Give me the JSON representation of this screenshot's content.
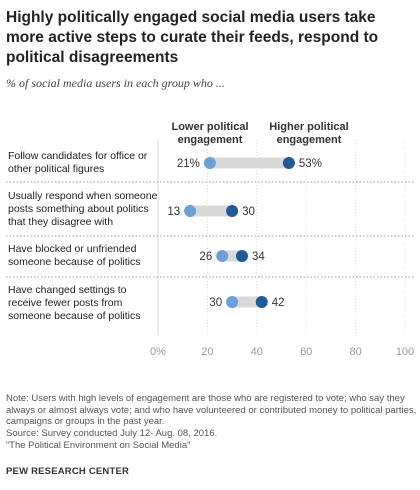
{
  "title": "Highly politically engaged social media users take more active steps to curate their feeds, respond to political disagreements",
  "subtitle": "% of social media users in each group who ...",
  "legend": {
    "low_label": "Lower political engagement",
    "high_label": "Higher political engagement"
  },
  "colors": {
    "low": "#6a9fd8",
    "high": "#1f5a96",
    "bar": "#d9d9d9",
    "grid": "#d8d8d8",
    "divider": "#999999"
  },
  "chart_data": {
    "type": "dot",
    "categories": [
      "Follow candidates for office or other political figures",
      "Usually respond when someone posts something about politics that they disagree with",
      "Have blocked or unfriended someone because of politics",
      "Have changed settings to receive fewer posts from someone because of politics"
    ],
    "series": [
      {
        "name": "Lower political engagement",
        "values": [
          21,
          13,
          26,
          30
        ],
        "labels": [
          "21%",
          "13",
          "26",
          "30"
        ]
      },
      {
        "name": "Higher political engagement",
        "values": [
          53,
          30,
          34,
          42
        ],
        "labels": [
          "53%",
          "30",
          "34",
          "42"
        ]
      }
    ],
    "xlim": [
      0,
      100
    ],
    "xticks": [
      0,
      20,
      40,
      60,
      80,
      100
    ],
    "xtick_labels": [
      "0%",
      "20",
      "40",
      "60",
      "80",
      "100"
    ],
    "grid": true
  },
  "footer": {
    "note": "Note: Users with high levels of engagement are those who are registered to vote; who say they always or almost always vote; and who have volunteered or contributed money to political parties, campaigns or groups in the past year.",
    "source_line1": "Source: Survey conducted July 12- Aug. 08, 2016.",
    "source_line2": "“The Political Environment on Social Media”",
    "attribution": "PEW RESEARCH CENTER"
  }
}
